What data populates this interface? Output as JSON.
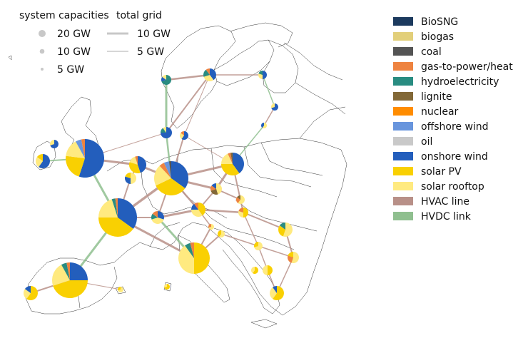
{
  "legend": {
    "system_capacities": {
      "title": "system capacities",
      "items": [
        {
          "label": "20 GW",
          "gw": 20
        },
        {
          "label": "10 GW",
          "gw": 10
        },
        {
          "label": "5 GW",
          "gw": 5
        }
      ]
    },
    "total_grid": {
      "title": "total grid",
      "items": [
        {
          "label": "10 GW",
          "gw": 10
        },
        {
          "label": "5 GW",
          "gw": 5
        }
      ]
    },
    "carriers": [
      {
        "label": "BioSNG",
        "color": "#1c3a5e"
      },
      {
        "label": "biogas",
        "color": "#e2cf7a"
      },
      {
        "label": "coal",
        "color": "#545454"
      },
      {
        "label": "gas-to-power/heat",
        "color": "#ee8340"
      },
      {
        "label": "hydroelectricity",
        "color": "#298c81"
      },
      {
        "label": "lignite",
        "color": "#826837"
      },
      {
        "label": "nuclear",
        "color": "#ff8c00"
      },
      {
        "label": "offshore wind",
        "color": "#6895dd"
      },
      {
        "label": "oil",
        "color": "#c9c9c9"
      },
      {
        "label": "onshore wind",
        "color": "#235ebc"
      },
      {
        "label": "solar PV",
        "color": "#f9d002"
      },
      {
        "label": "solar rooftop",
        "color": "#ffea80"
      },
      {
        "label": "HVAC line",
        "color": "#b89088"
      },
      {
        "label": "HVDC link",
        "color": "#8fbf8f"
      }
    ]
  }
}
